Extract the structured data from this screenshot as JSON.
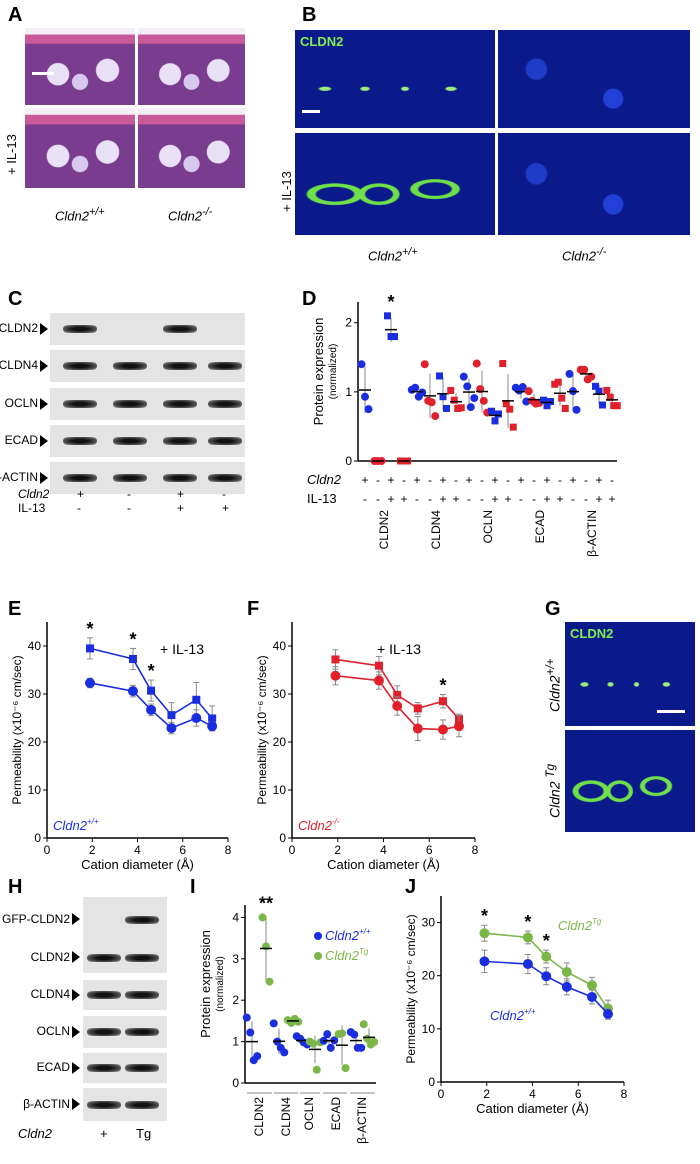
{
  "panels": {
    "a": "A",
    "b": "B",
    "c": "C",
    "d": "D",
    "e": "E",
    "f": "F",
    "g": "G",
    "h": "H",
    "i": "I",
    "j": "J"
  },
  "genotypes": {
    "gene": "Cldn2",
    "wt": "+/+",
    "ko": "-/-",
    "tg": "Tg"
  },
  "treatment": "+ IL-13",
  "panel_b": {
    "stain": "CLDN2"
  },
  "panel_g": {
    "stain": "CLDN2"
  },
  "panel_c": {
    "rows": [
      {
        "label": "CLDN2",
        "bands": [
          1,
          0,
          1,
          0
        ]
      },
      {
        "label": "CLDN4",
        "bands": [
          1,
          1,
          1,
          1
        ]
      },
      {
        "label": "OCLN",
        "bands": [
          1,
          1,
          1,
          1
        ]
      },
      {
        "label": "ECAD",
        "bands": [
          1,
          1,
          1,
          1
        ]
      },
      {
        "label": "β-ACTIN",
        "bands": [
          1,
          1,
          1,
          1
        ]
      }
    ],
    "cldn2_label": "Cldn2",
    "cldn2": [
      "+",
      "-",
      "+",
      "-"
    ],
    "il13_label": "IL-13",
    "il13": [
      "-",
      "-",
      "+",
      "+"
    ]
  },
  "panel_h": {
    "rows": [
      {
        "label": "GFP-CLDN2",
        "bands": [
          0,
          1
        ]
      },
      {
        "label": "CLDN2",
        "bands": [
          1,
          1
        ]
      },
      {
        "label": "CLDN4",
        "bands": [
          1,
          1
        ]
      },
      {
        "label": "OCLN",
        "bands": [
          1,
          1
        ]
      },
      {
        "label": "ECAD",
        "bands": [
          1,
          1
        ]
      },
      {
        "label": "β-ACTIN",
        "bands": [
          1,
          1
        ]
      }
    ],
    "lane_label": "Cldn2",
    "lanes": [
      "+",
      "Tg"
    ]
  },
  "colors": {
    "wt": "#1a2ee0",
    "ko": "#e0202a",
    "tg": "#7ab648",
    "error": "#888888"
  },
  "chart_data": [
    {
      "panel": "D",
      "type": "scatter",
      "ylabel": "Protein expression",
      "ylabel_sub": "(normalized)",
      "ylim": [
        0,
        2.3
      ],
      "yticks": [
        0,
        1,
        2
      ],
      "row_labels": {
        "cldn2": "Cldn2",
        "il13": "IL-13"
      },
      "cldn2": [
        "+",
        "-",
        "+",
        "-",
        "+",
        "-",
        "+",
        "-",
        "+",
        "-",
        "+",
        "-",
        "+",
        "-",
        "+",
        "-",
        "+",
        "-",
        "+",
        "-"
      ],
      "il13": [
        "-",
        "-",
        "+",
        "+",
        "-",
        "-",
        "+",
        "+",
        "-",
        "-",
        "+",
        "+",
        "-",
        "-",
        "+",
        "+",
        "-",
        "-",
        "+",
        "+"
      ],
      "categories": [
        "CLDN2",
        "CLDN4",
        "OCLN",
        "ECAD",
        "β-ACTIN"
      ],
      "groups": [
        {
          "color": "#1a2ee0",
          "marker": "circle",
          "values": [
            1.4,
            0.93,
            0.75
          ]
        },
        {
          "color": "#e0202a",
          "marker": "circle",
          "values": [
            0,
            0,
            0
          ]
        },
        {
          "color": "#1a2ee0",
          "marker": "square",
          "values": [
            2.1,
            1.8,
            1.8
          ],
          "annotation": "*"
        },
        {
          "color": "#e0202a",
          "marker": "square",
          "values": [
            0,
            0,
            0
          ]
        },
        {
          "color": "#1a2ee0",
          "marker": "circle",
          "values": [
            1.03,
            1.06,
            0.93,
            0.99
          ]
        },
        {
          "color": "#e0202a",
          "marker": "circle",
          "values": [
            1.4,
            0.87,
            0.85,
            0.65
          ]
        },
        {
          "color": "#1a2ee0",
          "marker": "square",
          "values": [
            1.23,
            0.93,
            0.76
          ]
        },
        {
          "color": "#e0202a",
          "marker": "square",
          "values": [
            1.02,
            0.88,
            0.76,
            0.77
          ]
        },
        {
          "color": "#1a2ee0",
          "marker": "circle",
          "values": [
            1.22,
            1.08,
            0.78,
            0.91
          ]
        },
        {
          "color": "#e0202a",
          "marker": "circle",
          "values": [
            1.41,
            1.04,
            0.87,
            0.7
          ]
        },
        {
          "color": "#1a2ee0",
          "marker": "square",
          "values": [
            0.72,
            0.58,
            0.68
          ]
        },
        {
          "color": "#e0202a",
          "marker": "square",
          "values": [
            1.41,
            0.83,
            0.75,
            0.49
          ]
        },
        {
          "color": "#1a2ee0",
          "marker": "circle",
          "values": [
            1.06,
            1.02,
            1.07,
            0.86
          ]
        },
        {
          "color": "#e0202a",
          "marker": "circle",
          "values": [
            1.01,
            0.87,
            0.83,
            0.84
          ]
        },
        {
          "color": "#1a2ee0",
          "marker": "square",
          "values": [
            0.88,
            0.8,
            0.86
          ]
        },
        {
          "color": "#e0202a",
          "marker": "square",
          "values": [
            1.11,
            1.14,
            0.91,
            0.76
          ]
        },
        {
          "color": "#1a2ee0",
          "marker": "circle",
          "values": [
            1.26,
            1.01,
            0.74
          ]
        },
        {
          "color": "#e0202a",
          "marker": "circle",
          "values": [
            1.32,
            1.32,
            1.18,
            1.22
          ]
        },
        {
          "color": "#1a2ee0",
          "marker": "square",
          "values": [
            1.08,
            1.01,
            0.81
          ]
        },
        {
          "color": "#e0202a",
          "marker": "square",
          "values": [
            1.02,
            0.92,
            0.8,
            0.8
          ]
        }
      ]
    },
    {
      "panel": "E",
      "type": "line",
      "xlabel": "Cation diameter (Å)",
      "ylabel": "Permeability (x10⁻⁶ cm/sec)",
      "xlim": [
        0,
        8
      ],
      "ylim": [
        0,
        45
      ],
      "xticks": [
        0,
        2,
        4,
        6,
        8
      ],
      "yticks": [
        0,
        10,
        20,
        30,
        40
      ],
      "inset_label": "Cldn2",
      "inset_sup": "+/+",
      "inset_color": "#1a2ee0",
      "series_label": "+ IL-13",
      "x": [
        1.9,
        3.8,
        4.6,
        5.5,
        6.6,
        7.3
      ],
      "series": [
        {
          "color": "#1a2ee0",
          "marker": "square",
          "y": [
            39.5,
            37.3,
            30.7,
            25.6,
            28.8,
            24.9
          ],
          "err": [
            2.2,
            2.2,
            2.2,
            2.6,
            3.6,
            2.6
          ],
          "sig": [
            "*",
            "*",
            "*",
            "",
            "",
            ""
          ]
        },
        {
          "color": "#1a2ee0",
          "marker": "circle",
          "y": [
            32.3,
            30.6,
            26.7,
            22.9,
            25.0,
            23.3
          ],
          "err": [
            1.0,
            1.2,
            1.2,
            1.2,
            1.7,
            0.9
          ],
          "sig": [
            "",
            "",
            "",
            "",
            "",
            ""
          ]
        }
      ]
    },
    {
      "panel": "F",
      "type": "line",
      "xlabel": "Cation diameter (Å)",
      "ylabel": "Permeability (x10⁻⁶ cm/sec)",
      "xlim": [
        0,
        8
      ],
      "ylim": [
        0,
        45
      ],
      "xticks": [
        0,
        2,
        4,
        6,
        8
      ],
      "yticks": [
        0,
        10,
        20,
        30,
        40
      ],
      "inset_label": "Cldn2",
      "inset_sup": "-/-",
      "inset_color": "#e0202a",
      "series_label": "+ IL-13",
      "x": [
        1.9,
        3.8,
        4.6,
        5.5,
        6.6,
        7.3
      ],
      "series": [
        {
          "color": "#e0202a",
          "marker": "square",
          "y": [
            37.2,
            35.9,
            29.8,
            27.0,
            28.5,
            24.8
          ],
          "err": [
            2.0,
            1.9,
            1.9,
            1.2,
            1.4,
            1.0
          ],
          "sig": [
            "",
            "",
            "",
            "",
            "*",
            ""
          ]
        },
        {
          "color": "#e0202a",
          "marker": "circle",
          "y": [
            33.8,
            32.8,
            27.5,
            22.8,
            22.6,
            23.3
          ],
          "err": [
            1.9,
            1.8,
            1.9,
            2.5,
            2.0,
            2.2
          ],
          "sig": [
            "",
            "",
            "",
            "",
            "",
            ""
          ]
        }
      ]
    },
    {
      "panel": "I",
      "type": "scatter",
      "ylabel": "Protein expression",
      "ylabel_sub": "(normalized)",
      "ylim": [
        0,
        4.3
      ],
      "yticks": [
        0,
        1,
        2,
        3,
        4
      ],
      "categories": [
        "CLDN2",
        "CLDN4",
        "OCLN",
        "ECAD",
        "β-ACTIN"
      ],
      "legend": [
        {
          "name": "Cldn2",
          "sup": "+/+",
          "color": "#1a2ee0"
        },
        {
          "name": "Cldn2",
          "sup": "Tg",
          "color": "#7ab648"
        }
      ],
      "groups": [
        {
          "color": "#1a2ee0",
          "values": [
            1.58,
            1.22,
            0.55,
            0.65
          ]
        },
        {
          "color": "#7ab648",
          "values": [
            4.0,
            3.3,
            2.45
          ],
          "annotation": "**"
        },
        {
          "color": "#1a2ee0",
          "values": [
            1.44,
            1.0,
            0.85,
            0.74
          ]
        },
        {
          "color": "#7ab648",
          "values": [
            1.52,
            1.45,
            1.55,
            1.48
          ]
        },
        {
          "color": "#1a2ee0",
          "values": [
            1.13,
            1.07,
            0.98,
            0.93
          ]
        },
        {
          "color": "#7ab648",
          "values": [
            1.0,
            0.95,
            0.32,
            0.98
          ]
        },
        {
          "color": "#1a2ee0",
          "values": [
            1.02,
            1.18,
            0.85,
            1.03
          ]
        },
        {
          "color": "#7ab648",
          "values": [
            1.18,
            1.2,
            0.36
          ]
        },
        {
          "color": "#1a2ee0",
          "values": [
            1.23,
            1.17,
            0.85,
            0.85
          ]
        },
        {
          "color": "#7ab648",
          "values": [
            1.42,
            1.07,
            0.93,
            0.99
          ]
        }
      ]
    },
    {
      "panel": "J",
      "type": "line",
      "xlabel": "Cation diameter (Å)",
      "ylabel": "Permeability (x10⁻⁶ cm/sec)",
      "xlim": [
        0,
        8
      ],
      "ylim": [
        0,
        35
      ],
      "xticks": [
        0,
        2,
        4,
        6,
        8
      ],
      "yticks": [
        0,
        10,
        20,
        30
      ],
      "x": [
        1.9,
        3.8,
        4.6,
        5.5,
        6.6,
        7.3
      ],
      "series": [
        {
          "name": "Cldn2",
          "sup": "Tg",
          "color": "#7ab648",
          "marker": "circle",
          "y": [
            28.0,
            27.2,
            23.6,
            20.7,
            18.2,
            13.8
          ],
          "err": [
            1.5,
            1.2,
            1.2,
            1.7,
            1.5,
            1.6
          ],
          "sig": [
            "*",
            "*",
            "*",
            "",
            "",
            ""
          ]
        },
        {
          "name": "Cldn2",
          "sup": "+/+",
          "color": "#1a2ee0",
          "marker": "circle",
          "y": [
            22.7,
            22.2,
            19.9,
            17.9,
            16.0,
            12.8
          ],
          "err": [
            2.1,
            1.8,
            1.6,
            1.5,
            1.3,
            1.0
          ],
          "sig": [
            "",
            "",
            "",
            "",
            "",
            ""
          ]
        }
      ]
    }
  ]
}
